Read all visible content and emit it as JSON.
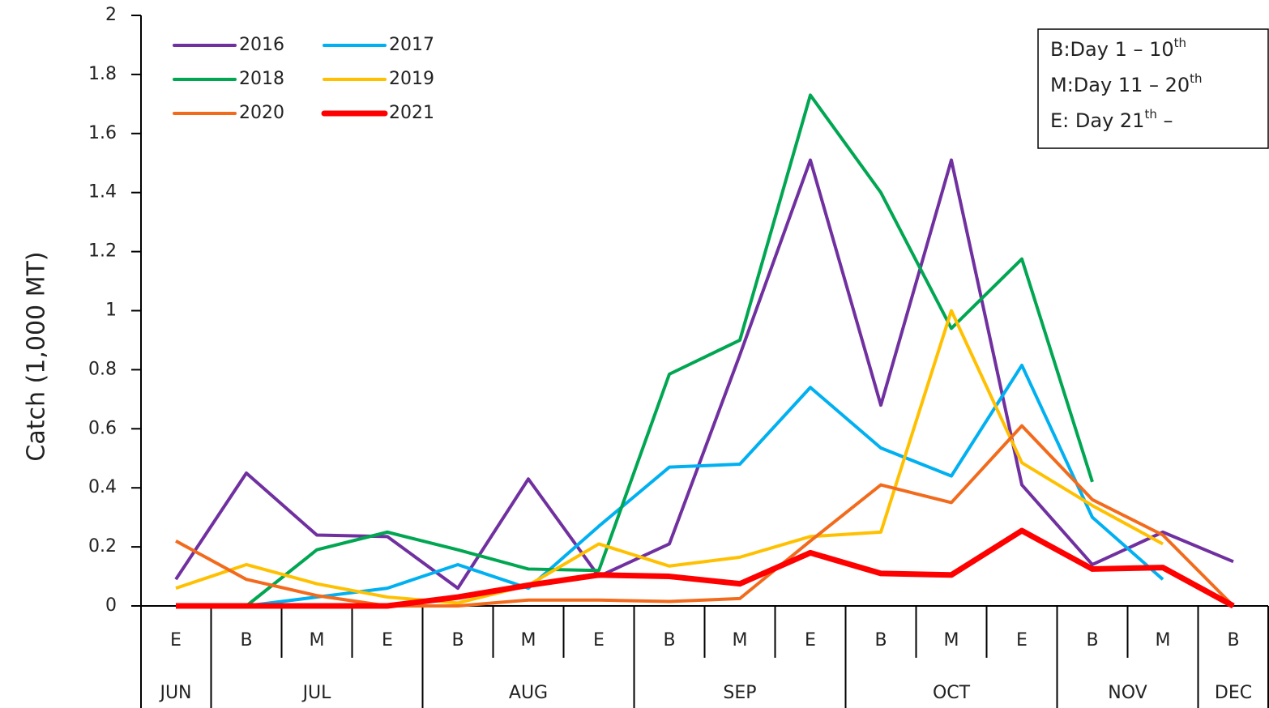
{
  "chart_data": {
    "type": "line",
    "y_label": "Catch (1,000 MT)",
    "categories": [
      "E",
      "B",
      "M",
      "E",
      "B",
      "M",
      "E",
      "B",
      "M",
      "E",
      "B",
      "M",
      "E",
      "B",
      "M",
      "B"
    ],
    "month_groups": [
      {
        "label": "JUN",
        "count": 1
      },
      {
        "label": "JUL",
        "count": 3
      },
      {
        "label": "AUG",
        "count": 3
      },
      {
        "label": "SEP",
        "count": 3
      },
      {
        "label": "OCT",
        "count": 3
      },
      {
        "label": "NOV",
        "count": 2
      },
      {
        "label": "DEC",
        "count": 1
      }
    ],
    "ylim": [
      0,
      2
    ],
    "yticks": [
      0,
      0.2,
      0.4,
      0.6,
      0.8,
      1,
      1.2,
      1.4,
      1.6,
      1.8,
      2
    ],
    "legend": "upper left",
    "annotation": [
      [
        "B:Day 1 – 10",
        "th"
      ],
      [
        "M:Day 11 – 20",
        "th"
      ],
      [
        "E: Day 21",
        "th",
        " –"
      ]
    ],
    "series": [
      {
        "name": "2016",
        "color": "#7030a0",
        "values": [
          0.09,
          0.45,
          0.24,
          0.235,
          0.06,
          0.43,
          0.1,
          0.21,
          0.85,
          1.51,
          0.68,
          1.51,
          0.41,
          0.14,
          0.25,
          0.15
        ]
      },
      {
        "name": "2017",
        "color": "#00b0f0",
        "values": [
          null,
          0.0,
          0.03,
          0.06,
          0.14,
          0.06,
          0.27,
          0.47,
          0.48,
          0.74,
          0.535,
          0.44,
          0.815,
          0.3,
          0.09,
          null
        ]
      },
      {
        "name": "2018",
        "color": "#00a651",
        "values": [
          null,
          0.0,
          0.19,
          0.25,
          0.19,
          0.125,
          0.12,
          0.785,
          0.9,
          1.73,
          1.4,
          0.94,
          1.175,
          0.42,
          null,
          null
        ]
      },
      {
        "name": "2019",
        "color": "#ffc000",
        "values": [
          0.06,
          0.14,
          0.075,
          0.03,
          0.01,
          0.07,
          0.21,
          0.135,
          0.165,
          0.235,
          0.25,
          1.0,
          0.485,
          0.34,
          0.21,
          null
        ]
      },
      {
        "name": "2020",
        "color": "#f26b1d",
        "values": [
          0.22,
          0.09,
          0.035,
          0.0,
          0.0,
          0.02,
          0.02,
          0.015,
          0.025,
          0.22,
          0.41,
          0.35,
          0.61,
          0.36,
          0.24,
          0.0
        ]
      },
      {
        "name": "2021",
        "color": "#ff0000",
        "values": [
          0,
          0,
          0,
          0,
          0.03,
          0.07,
          0.105,
          0.1,
          0.075,
          0.18,
          0.11,
          0.105,
          0.255,
          0.125,
          0.13,
          0.0
        ]
      }
    ]
  }
}
